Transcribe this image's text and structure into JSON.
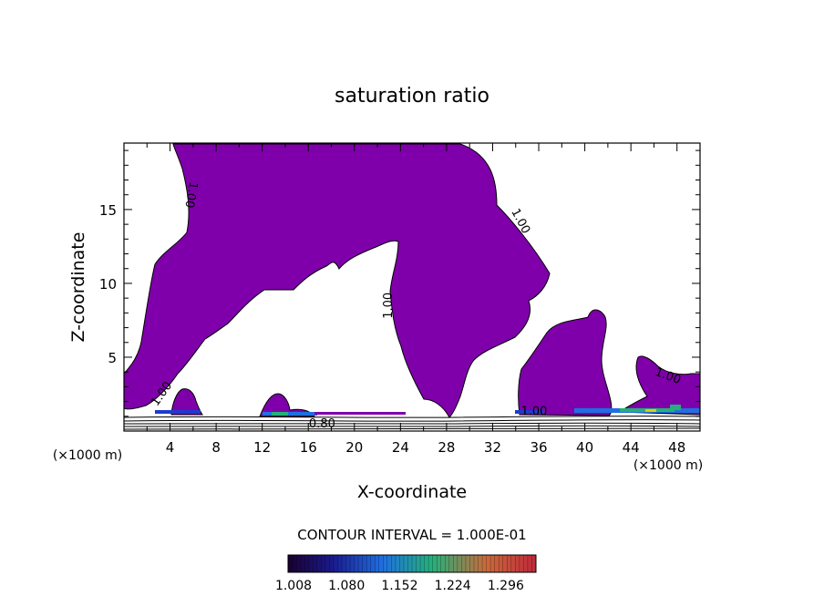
{
  "chart_data": {
    "type": "contour",
    "title": "saturation ratio",
    "xlabel": "X-coordinate",
    "ylabel": "Z-coordinate",
    "x_unit_left": "(×1000 m)",
    "x_unit_right": "(×1000 m)",
    "xlim": [
      0,
      50
    ],
    "ylim": [
      0,
      19.5
    ],
    "xticks": [
      4,
      8,
      12,
      16,
      20,
      24,
      28,
      32,
      36,
      40,
      44,
      48
    ],
    "yticks": [
      5,
      10,
      15
    ],
    "contour_interval_text": "CONTOUR INTERVAL = 1.000E-01",
    "contour_labels": [
      {
        "text": "1.00",
        "x": 5.8,
        "y": 16.0,
        "rotate": 100
      },
      {
        "text": "1.00",
        "x": 34.4,
        "y": 14.2,
        "rotate": 62
      },
      {
        "text": "1.00",
        "x": 23.0,
        "y": 8.5,
        "rotate": -90
      },
      {
        "text": "1.00",
        "x": 3.3,
        "y": 2.5,
        "rotate": -55
      },
      {
        "text": "1.00",
        "x": 47.2,
        "y": 3.7,
        "rotate": 20
      },
      {
        "text": "1.00",
        "x": 35.6,
        "y": 1.3,
        "rotate": 0
      },
      {
        "text": "0.80",
        "x": 17.2,
        "y": 0.45,
        "rotate": 0
      }
    ],
    "supersaturated_regions": [
      {
        "name": "upper-left-lobe",
        "value": ">1.00"
      },
      {
        "name": "right-hump",
        "value": ">1.00"
      },
      {
        "name": "lower-left-lobe",
        "value": ">1.00"
      },
      {
        "name": "far-right-lobe",
        "value": ">1.00"
      }
    ],
    "colorbar": {
      "labels": [
        "1.008",
        "1.080",
        "1.152",
        "1.224",
        "1.296"
      ],
      "min": 1.008,
      "max": 1.296,
      "colors": [
        "#1a0030",
        "#1a1a8c",
        "#1f6fe0",
        "#25b07a",
        "#c86a3c",
        "#c0283a"
      ]
    },
    "fill_color": "#7f00aa"
  }
}
